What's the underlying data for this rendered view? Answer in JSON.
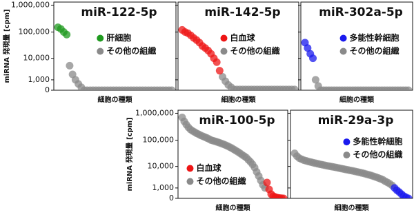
{
  "chart_data": [
    {
      "type": "scatter",
      "title": "miR-122-5p",
      "xlabel": "細胞の種類",
      "ylabel": "miRNA 発現量 [cpm]",
      "yscale": "symlog",
      "ylim": [
        0,
        1300000
      ],
      "show_ytick_labels": true,
      "yticks": [
        0,
        {
          "value": 1000,
          "label": "1,000"
        },
        {
          "value": 10000,
          "label": "10,000"
        },
        {
          "value": 100000,
          "label": "100,000"
        },
        {
          "value": 1000000,
          "label": "1,000,000"
        }
      ],
      "legend": "right",
      "series": [
        {
          "name": "肝細胞",
          "color": "#1f9a1f",
          "values": [
            150000,
            130000,
            100000,
            80000,
            null,
            null,
            null,
            null,
            null,
            null,
            null,
            null,
            null,
            null,
            null,
            null,
            null,
            null,
            null,
            null,
            null,
            null,
            null,
            null,
            null,
            null,
            null,
            null,
            null,
            null,
            null,
            null,
            null,
            null,
            null,
            null,
            null,
            null,
            null,
            null
          ]
        },
        {
          "name": "その他の組織",
          "color": "#8a8a8a",
          "values": [
            null,
            null,
            null,
            null,
            5000,
            2000,
            1000,
            500,
            200,
            0,
            0,
            0,
            0,
            0,
            0,
            0,
            0,
            0,
            0,
            0,
            0,
            0,
            0,
            0,
            0,
            0,
            0,
            0,
            0,
            0,
            0,
            0,
            0,
            0,
            0,
            0,
            0,
            0,
            0,
            0
          ]
        }
      ]
    },
    {
      "type": "scatter",
      "title": "miR-142-5p",
      "xlabel": "細胞の種類",
      "yscale": "symlog",
      "ylim": [
        0,
        1300000
      ],
      "show_ytick_labels": false,
      "yticks": [
        0,
        1000,
        10000,
        100000,
        1000000
      ],
      "legend": "right",
      "series": [
        {
          "name": "白血球",
          "color": "#ee1515",
          "values": [
            120000,
            100000,
            90000,
            75000,
            60000,
            50000,
            40000,
            30000,
            25000,
            20000,
            15000,
            10000,
            7000,
            3000,
            null,
            null,
            null,
            null,
            null,
            null,
            null,
            null,
            null,
            null,
            null,
            null,
            null,
            null,
            null,
            null,
            null,
            null,
            null,
            null,
            null,
            null,
            null,
            null,
            null,
            null
          ]
        },
        {
          "name": "その他の組織",
          "color": "#8a8a8a",
          "values": [
            null,
            null,
            null,
            null,
            null,
            null,
            null,
            null,
            null,
            null,
            null,
            null,
            null,
            null,
            1500,
            800,
            400,
            200,
            50,
            50,
            50,
            50,
            50,
            50,
            50,
            50,
            50,
            50,
            50,
            50,
            50,
            50,
            50,
            50,
            50,
            50,
            50,
            50,
            50,
            50
          ]
        }
      ]
    },
    {
      "type": "scatter",
      "title": "miR-302a-5p",
      "xlabel": "細胞の種類",
      "yscale": "symlog",
      "ylim": [
        0,
        1300000
      ],
      "show_ytick_labels": false,
      "yticks": [
        0,
        1000,
        10000,
        100000,
        1000000
      ],
      "legend": "right",
      "series": [
        {
          "name": "多能性幹細胞",
          "color": "#1a1aee",
          "values": [
            40000,
            25000,
            15000,
            10000,
            null,
            null,
            null,
            null,
            null,
            null,
            null,
            null,
            null,
            null,
            null,
            null,
            null,
            null,
            null,
            null,
            null,
            null,
            null,
            null,
            null,
            null,
            null,
            null,
            null,
            null,
            null,
            null,
            null,
            null,
            null,
            null,
            null,
            null,
            null,
            null
          ]
        },
        {
          "name": "その他の組織",
          "color": "#8a8a8a",
          "values": [
            null,
            null,
            null,
            null,
            1000,
            300,
            0,
            0,
            0,
            0,
            0,
            0,
            0,
            0,
            0,
            0,
            0,
            0,
            0,
            0,
            0,
            0,
            0,
            0,
            0,
            0,
            0,
            0,
            0,
            0,
            0,
            0,
            0,
            0,
            0,
            0,
            0,
            0,
            0,
            0
          ]
        }
      ]
    },
    {
      "type": "scatter",
      "title": "miR-100-5p",
      "xlabel": "細胞の種類",
      "ylabel": "miRNA 発現量 [cpm]",
      "yscale": "symlog",
      "ylim": [
        0,
        1300000
      ],
      "show_ytick_labels": true,
      "yticks": [
        0,
        {
          "value": 1000,
          "label": "1,000"
        },
        {
          "value": 10000,
          "label": "10,000"
        },
        {
          "value": 100000,
          "label": "100,000"
        },
        {
          "value": 1000000,
          "label": "1,000,000"
        }
      ],
      "legend": "lower left",
      "series": [
        {
          "name": "白血球",
          "color": "#ee1515",
          "values": [
            null,
            null,
            null,
            null,
            null,
            null,
            null,
            null,
            null,
            null,
            null,
            null,
            null,
            null,
            null,
            null,
            null,
            null,
            null,
            null,
            null,
            null,
            null,
            null,
            null,
            null,
            null,
            null,
            null,
            null,
            null,
            null,
            null,
            null,
            null,
            null,
            null,
            null,
            null,
            null,
            null,
            2000,
            800,
            300,
            150,
            80,
            40,
            20,
            10,
            0
          ]
        },
        {
          "name": "その他の組織",
          "color": "#8a8a8a",
          "values": [
            700000,
            500000,
            380000,
            300000,
            250000,
            220000,
            200000,
            180000,
            165000,
            150000,
            140000,
            130000,
            120000,
            110000,
            100000,
            95000,
            90000,
            85000,
            80000,
            75000,
            70000,
            65000,
            60000,
            55000,
            50000,
            45000,
            40000,
            36000,
            32000,
            28000,
            25000,
            22000,
            18000,
            15000,
            12000,
            9000,
            6000,
            4000,
            2500,
            1500,
            1000,
            null,
            null,
            null,
            null,
            null,
            null,
            null,
            null,
            null
          ]
        }
      ]
    },
    {
      "type": "scatter",
      "title": "miR-29a-3p",
      "xlabel": "細胞の種類",
      "yscale": "symlog",
      "ylim": [
        0,
        1300000
      ],
      "show_ytick_labels": false,
      "yticks": [
        0,
        1000,
        10000,
        100000,
        1000000
      ],
      "legend": "upper right",
      "series": [
        {
          "name": "多能性幹細胞",
          "color": "#1a1aee",
          "values": [
            null,
            null,
            null,
            null,
            null,
            null,
            null,
            null,
            null,
            null,
            null,
            null,
            null,
            null,
            null,
            null,
            null,
            null,
            null,
            null,
            null,
            null,
            null,
            null,
            null,
            null,
            null,
            null,
            null,
            null,
            null,
            null,
            null,
            null,
            null,
            null,
            null,
            null,
            null,
            null,
            null,
            null,
            null,
            1000,
            700,
            500,
            300,
            150,
            60,
            0
          ]
        },
        {
          "name": "その他の組織",
          "color": "#8a8a8a",
          "values": [
            32000,
            25000,
            21000,
            19000,
            17500,
            16500,
            15500,
            14800,
            14000,
            13300,
            12700,
            12100,
            11600,
            11100,
            10600,
            10200,
            9800,
            9400,
            9000,
            8600,
            8200,
            7900,
            7500,
            7200,
            6900,
            6600,
            6300,
            6000,
            5700,
            5400,
            5100,
            4800,
            4500,
            4200,
            3900,
            3600,
            3300,
            3000,
            2700,
            2300,
            2000,
            1700,
            1400,
            null,
            null,
            null,
            null,
            null,
            null,
            null
          ]
        }
      ]
    }
  ]
}
